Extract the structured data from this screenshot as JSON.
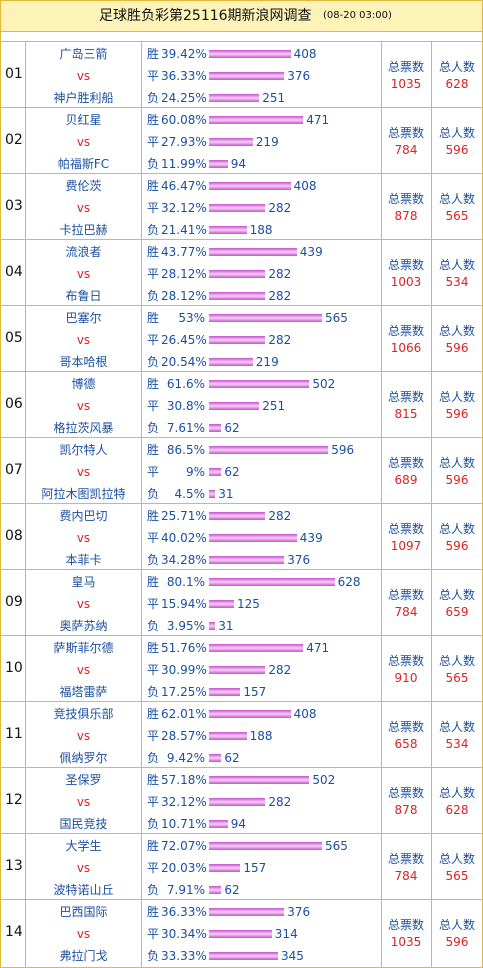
{
  "header": {
    "title": "足球胜负彩第25116期新浪网调查",
    "time": "(08-20 03:00)"
  },
  "labels": {
    "vs": "vs",
    "outcomes": [
      "胜",
      "平",
      "负"
    ],
    "votes": "总票数",
    "people": "总人数"
  },
  "rows": [
    {
      "no": "01",
      "home": "广岛三箭",
      "away": "神户胜利船",
      "percents": [
        "39.42%",
        "36.33%",
        "24.25%"
      ],
      "counts": [
        408,
        376,
        251
      ],
      "votes": 1035,
      "people": 628
    },
    {
      "no": "02",
      "home": "贝红星",
      "away": "帕福斯FC",
      "percents": [
        "60.08%",
        "27.93%",
        "11.99%"
      ],
      "counts": [
        471,
        219,
        94
      ],
      "votes": 784,
      "people": 596
    },
    {
      "no": "03",
      "home": "费伦茨",
      "away": "卡拉巴赫",
      "percents": [
        "46.47%",
        "32.12%",
        "21.41%"
      ],
      "counts": [
        408,
        282,
        188
      ],
      "votes": 878,
      "people": 565
    },
    {
      "no": "04",
      "home": "流浪者",
      "away": "布鲁日",
      "percents": [
        "43.77%",
        "28.12%",
        "28.12%"
      ],
      "counts": [
        439,
        282,
        282
      ],
      "votes": 1003,
      "people": 534
    },
    {
      "no": "05",
      "home": "巴塞尔",
      "away": "哥本哈根",
      "percents": [
        "53%",
        "26.45%",
        "20.54%"
      ],
      "counts": [
        565,
        282,
        219
      ],
      "votes": 1066,
      "people": 596
    },
    {
      "no": "06",
      "home": "博德",
      "away": "格拉茨风暴",
      "percents": [
        "61.6%",
        "30.8%",
        "7.61%"
      ],
      "counts": [
        502,
        251,
        62
      ],
      "votes": 815,
      "people": 596
    },
    {
      "no": "07",
      "home": "凯尔特人",
      "away": "阿拉木图凯拉特",
      "percents": [
        "86.5%",
        "9%",
        "4.5%"
      ],
      "counts": [
        596,
        62,
        31
      ],
      "votes": 689,
      "people": 596
    },
    {
      "no": "08",
      "home": "费内巴切",
      "away": "本菲卡",
      "percents": [
        "25.71%",
        "40.02%",
        "34.28%"
      ],
      "counts": [
        282,
        439,
        376
      ],
      "votes": 1097,
      "people": 596
    },
    {
      "no": "09",
      "home": "皇马",
      "away": "奥萨苏纳",
      "percents": [
        "80.1%",
        "15.94%",
        "3.95%"
      ],
      "counts": [
        628,
        125,
        31
      ],
      "votes": 784,
      "people": 659
    },
    {
      "no": "10",
      "home": "萨斯菲尔德",
      "away": "福塔雷萨",
      "percents": [
        "51.76%",
        "30.99%",
        "17.25%"
      ],
      "counts": [
        471,
        282,
        157
      ],
      "votes": 910,
      "people": 565
    },
    {
      "no": "11",
      "home": "竞技俱乐部",
      "away": "佩纳罗尔",
      "percents": [
        "62.01%",
        "28.57%",
        "9.42%"
      ],
      "counts": [
        408,
        188,
        62
      ],
      "votes": 658,
      "people": 534
    },
    {
      "no": "12",
      "home": "圣保罗",
      "away": "国民竞技",
      "percents": [
        "57.18%",
        "32.12%",
        "10.71%"
      ],
      "counts": [
        502,
        282,
        94
      ],
      "votes": 878,
      "people": 628
    },
    {
      "no": "13",
      "home": "大学生",
      "away": "波特诺山丘",
      "percents": [
        "72.07%",
        "20.03%",
        "7.91%"
      ],
      "counts": [
        565,
        157,
        62
      ],
      "votes": 784,
      "people": 565
    },
    {
      "no": "14",
      "home": "巴西国际",
      "away": "弗拉门戈",
      "percents": [
        "36.33%",
        "30.34%",
        "33.33%"
      ],
      "counts": [
        376,
        314,
        345
      ],
      "votes": 1035,
      "people": 596
    }
  ]
}
